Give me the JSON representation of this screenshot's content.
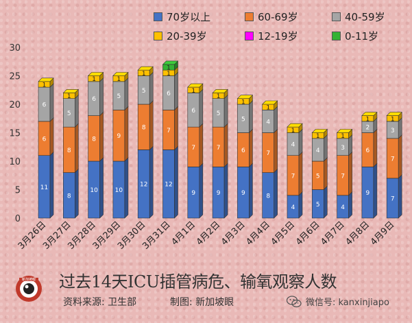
{
  "chart_data": {
    "type": "bar",
    "stacked": true,
    "categories": [
      "3月26日",
      "3月27日",
      "3月28日",
      "3月29日",
      "3月30日",
      "3月31日",
      "4月1日",
      "4月2日",
      "4月3日",
      "4月4日",
      "4月5日",
      "4月6日",
      "4月7日",
      "4月8日",
      "4月9日"
    ],
    "series": [
      {
        "name": "70岁以上",
        "color": "#4472c4",
        "values": [
          11,
          8,
          10,
          10,
          12,
          12,
          9,
          9,
          9,
          8,
          4,
          5,
          4,
          9,
          7
        ]
      },
      {
        "name": "60-69岁",
        "color": "#ed7d31",
        "values": [
          6,
          8,
          8,
          9,
          8,
          7,
          7,
          7,
          6,
          7,
          7,
          5,
          7,
          6,
          7
        ]
      },
      {
        "name": "40-59岁",
        "color": "#a5a5a5",
        "values": [
          6,
          5,
          6,
          5,
          5,
          6,
          6,
          5,
          5,
          4,
          4,
          4,
          3,
          2,
          3
        ]
      },
      {
        "name": "20-39岁",
        "color": "#ffc000",
        "values": [
          1,
          1,
          1,
          1,
          1,
          1,
          1,
          1,
          1,
          1,
          1,
          1,
          1,
          1,
          1
        ]
      },
      {
        "name": "12-19岁",
        "color": "#ff00ff",
        "values": [
          0,
          0,
          0,
          0,
          0,
          0,
          0,
          0,
          0,
          0,
          0,
          0,
          0,
          0,
          0
        ]
      },
      {
        "name": "0-11岁",
        "color": "#33b233",
        "values": [
          0,
          0,
          0,
          0,
          0,
          1,
          0,
          0,
          0,
          0,
          0,
          0,
          0,
          0,
          0
        ]
      }
    ],
    "yticks": [
      0,
      5,
      10,
      15,
      20,
      25,
      30
    ],
    "ylim": [
      0,
      30
    ],
    "legend_position": "top-right",
    "grid": false
  },
  "title": "过去14天ICU插管病危、输氧观察人数",
  "source": "资料来源:  卫生部",
  "maker": "制图:  新加坡眼",
  "wechat": "微信号: kanxinjiapo",
  "logo_text": "新加坡眼"
}
